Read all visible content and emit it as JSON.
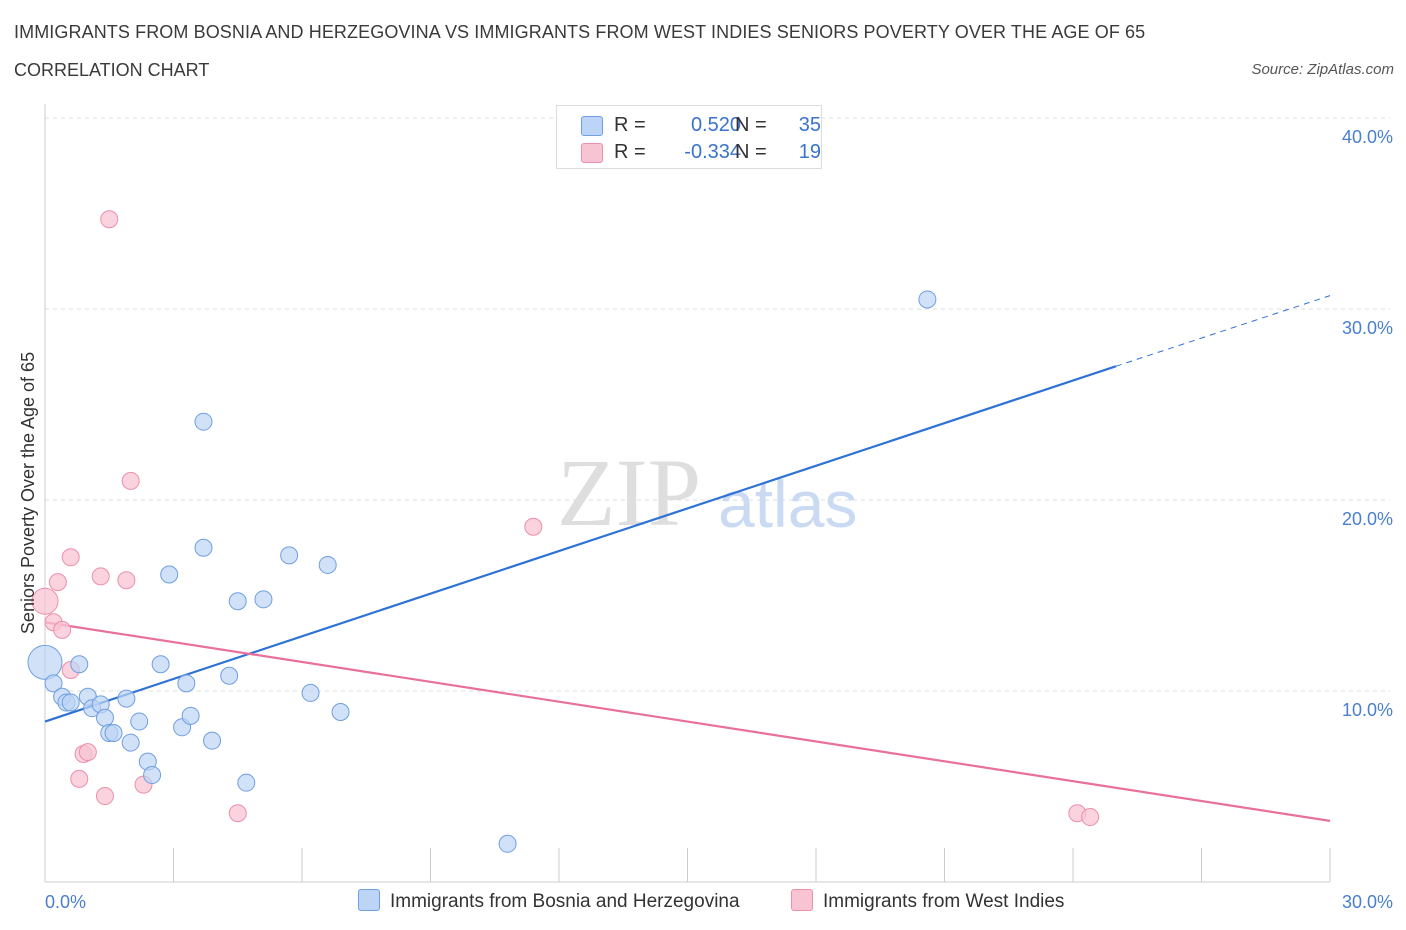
{
  "title": "IMMIGRANTS FROM BOSNIA AND HERZEGOVINA VS IMMIGRANTS FROM WEST INDIES SENIORS POVERTY OVER THE AGE OF 65",
  "subtitle": "CORRELATION CHART",
  "source": "Source: ZipAtlas.com",
  "watermark": {
    "zip": "ZIP",
    "atlas": "atlas"
  },
  "colors": {
    "blue_fill": "#bcd4f5",
    "blue_stroke": "#6f9fe0",
    "blue_line": "#2f72d6",
    "pink_fill": "#f8c4d4",
    "pink_stroke": "#ec8fab",
    "pink_line": "#e8709a",
    "grid": "#dddddd",
    "axis": "#cccccc",
    "tick_label": "#4a7fd0"
  },
  "legend": {
    "series": [
      {
        "r_label": "R =",
        "r_value": "0.520",
        "n_label": "N =",
        "n_value": "35"
      },
      {
        "r_label": "R =",
        "r_value": "-0.334",
        "n_label": "N =",
        "n_value": "19"
      }
    ]
  },
  "chart_data": {
    "type": "scatter",
    "title": "IMMIGRANTS FROM BOSNIA AND HERZEGOVINA VS IMMIGRANTS FROM WEST INDIES SENIORS POVERTY OVER THE AGE OF 65",
    "subtitle": "CORRELATION CHART",
    "xlabel": "",
    "ylabel": "Seniors Poverty Over the Age of 65",
    "xlim": [
      0,
      30
    ],
    "ylim": [
      0,
      40
    ],
    "x_tick_labels": [
      "0.0%",
      "30.0%"
    ],
    "y_ticks": [
      10,
      20,
      30,
      40
    ],
    "y_tick_labels": [
      "10.0%",
      "20.0%",
      "30.0%",
      "40.0%"
    ],
    "grid": true,
    "series": [
      {
        "name": "Immigrants from Bosnia and Herzegovina",
        "color": "blue",
        "R": 0.52,
        "N": 35,
        "trend": {
          "x0": 0,
          "y0": 8.4,
          "x1": 25,
          "y1": 27.0,
          "dash_to_x": 30,
          "dash_to_y": 30.7
        },
        "points": [
          {
            "x": 0.0,
            "y": 11.5,
            "s": 3
          },
          {
            "x": 0.2,
            "y": 10.4,
            "s": 1
          },
          {
            "x": 0.4,
            "y": 9.7,
            "s": 1
          },
          {
            "x": 0.5,
            "y": 9.4,
            "s": 1
          },
          {
            "x": 0.6,
            "y": 9.4,
            "s": 1
          },
          {
            "x": 0.8,
            "y": 11.4,
            "s": 1
          },
          {
            "x": 1.0,
            "y": 9.7,
            "s": 1
          },
          {
            "x": 1.1,
            "y": 9.1,
            "s": 1
          },
          {
            "x": 1.3,
            "y": 9.3,
            "s": 1
          },
          {
            "x": 1.4,
            "y": 8.6,
            "s": 1
          },
          {
            "x": 1.5,
            "y": 7.8,
            "s": 1
          },
          {
            "x": 1.6,
            "y": 7.8,
            "s": 1
          },
          {
            "x": 1.9,
            "y": 9.6,
            "s": 1
          },
          {
            "x": 2.0,
            "y": 7.3,
            "s": 1
          },
          {
            "x": 2.2,
            "y": 8.4,
            "s": 1
          },
          {
            "x": 2.4,
            "y": 6.3,
            "s": 1
          },
          {
            "x": 2.5,
            "y": 5.6,
            "s": 1
          },
          {
            "x": 2.7,
            "y": 11.4,
            "s": 1
          },
          {
            "x": 2.9,
            "y": 16.1,
            "s": 1
          },
          {
            "x": 3.2,
            "y": 8.1,
            "s": 1
          },
          {
            "x": 3.3,
            "y": 10.4,
            "s": 1
          },
          {
            "x": 3.4,
            "y": 8.7,
            "s": 1
          },
          {
            "x": 3.7,
            "y": 17.5,
            "s": 1
          },
          {
            "x": 3.7,
            "y": 24.1,
            "s": 1
          },
          {
            "x": 3.9,
            "y": 7.4,
            "s": 1
          },
          {
            "x": 4.3,
            "y": 10.8,
            "s": 1
          },
          {
            "x": 4.5,
            "y": 14.7,
            "s": 1
          },
          {
            "x": 4.7,
            "y": 5.2,
            "s": 1
          },
          {
            "x": 5.1,
            "y": 14.8,
            "s": 1
          },
          {
            "x": 5.7,
            "y": 17.1,
            "s": 1
          },
          {
            "x": 6.2,
            "y": 9.9,
            "s": 1
          },
          {
            "x": 6.6,
            "y": 16.6,
            "s": 1
          },
          {
            "x": 6.9,
            "y": 8.9,
            "s": 1
          },
          {
            "x": 10.8,
            "y": 2.0,
            "s": 1
          },
          {
            "x": 20.6,
            "y": 30.5,
            "s": 1
          }
        ]
      },
      {
        "name": "Immigrants from West Indies",
        "color": "pink",
        "R": -0.334,
        "N": 19,
        "trend": {
          "x0": 0,
          "y0": 13.6,
          "x1": 30,
          "y1": 3.2
        },
        "points": [
          {
            "x": 0.0,
            "y": 14.7,
            "s": 2
          },
          {
            "x": 0.2,
            "y": 13.6,
            "s": 1
          },
          {
            "x": 0.3,
            "y": 15.7,
            "s": 1
          },
          {
            "x": 0.4,
            "y": 13.2,
            "s": 1
          },
          {
            "x": 0.6,
            "y": 17.0,
            "s": 1
          },
          {
            "x": 0.6,
            "y": 11.1,
            "s": 1
          },
          {
            "x": 0.8,
            "y": 5.4,
            "s": 1
          },
          {
            "x": 0.9,
            "y": 6.7,
            "s": 1
          },
          {
            "x": 1.0,
            "y": 6.8,
            "s": 1
          },
          {
            "x": 1.3,
            "y": 16.0,
            "s": 1
          },
          {
            "x": 1.4,
            "y": 4.5,
            "s": 1
          },
          {
            "x": 1.5,
            "y": 34.7,
            "s": 1
          },
          {
            "x": 1.9,
            "y": 15.8,
            "s": 1
          },
          {
            "x": 2.0,
            "y": 21.0,
            "s": 1
          },
          {
            "x": 2.3,
            "y": 5.1,
            "s": 1
          },
          {
            "x": 4.5,
            "y": 3.6,
            "s": 1
          },
          {
            "x": 11.4,
            "y": 18.6,
            "s": 1
          },
          {
            "x": 24.1,
            "y": 3.6,
            "s": 1
          },
          {
            "x": 24.4,
            "y": 3.4,
            "s": 1
          }
        ]
      }
    ]
  }
}
